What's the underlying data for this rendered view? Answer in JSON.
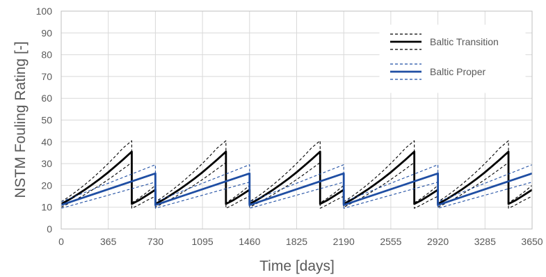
{
  "chart_data": {
    "type": "line",
    "title": "",
    "xlabel": "Time [days]",
    "ylabel": "NSTM Fouling Rating [-]",
    "xlim": [
      0,
      3650
    ],
    "ylim": [
      0,
      100
    ],
    "xticks": [
      "0",
      "365",
      "730",
      "1095",
      "1460",
      "1825",
      "2190",
      "2555",
      "2920",
      "3285",
      "3650"
    ],
    "yticks": [
      "0",
      "10",
      "20",
      "30",
      "40",
      "50",
      "60",
      "70",
      "80",
      "90",
      "100"
    ],
    "grid": true,
    "legend": {
      "placement": "top-right",
      "entries": [
        "Baltic Transition",
        "Baltic Proper"
      ]
    },
    "series": [
      {
        "name": "Baltic Transition",
        "color": "#000000",
        "style": "mean-solid, bounds-dashed",
        "cycle_starts": [
          0,
          730,
          1460,
          2190,
          2920
        ],
        "cycle_length": 730,
        "x": [
          0,
          60,
          120,
          180,
          240,
          300,
          360,
          420,
          480,
          547,
          547,
          600,
          660,
          730
        ],
        "mean": [
          11.5,
          13.4,
          15.6,
          17.9,
          20.4,
          23.0,
          25.8,
          28.8,
          31.9,
          35.5,
          11.5,
          13.1,
          15.3,
          18.0
        ],
        "upper": [
          12.5,
          14.8,
          17.4,
          20.2,
          23.2,
          26.4,
          29.8,
          33.4,
          37.2,
          40.5,
          12.0,
          14.0,
          16.6,
          20.0
        ],
        "lower": [
          10.0,
          11.8,
          13.7,
          15.7,
          17.9,
          20.1,
          22.5,
          25.0,
          27.6,
          30.5,
          9.5,
          11.0,
          13.0,
          15.0
        ]
      },
      {
        "name": "Baltic Proper",
        "color": "#1f4ea3",
        "style": "mean-solid, bounds-dashed",
        "cycle_starts": [
          0,
          730,
          1460,
          2190,
          2920
        ],
        "cycle_length": 730,
        "x": [
          0,
          730
        ],
        "mean": [
          11.0,
          25.5
        ],
        "upper": [
          12.5,
          29.5
        ],
        "lower": [
          9.5,
          21.5
        ]
      }
    ]
  }
}
